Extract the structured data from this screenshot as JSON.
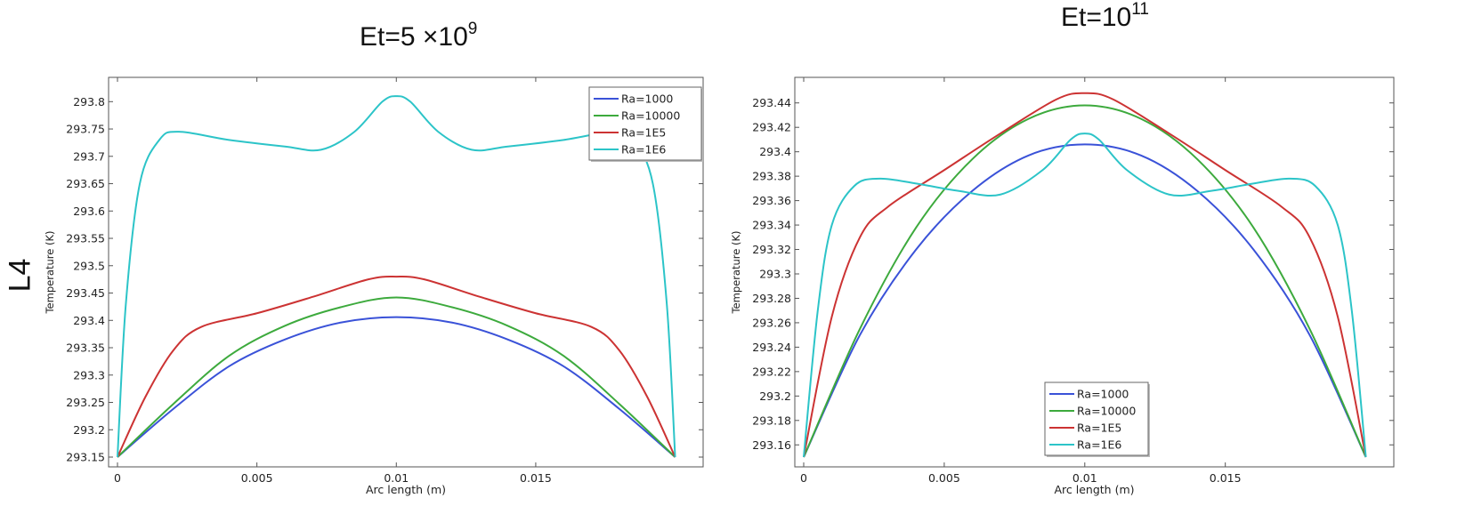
{
  "row_label": "L4",
  "charts": [
    {
      "title": {
        "main": "Et=5  ×10",
        "sup": "9"
      }
    },
    {
      "title": {
        "main": "Et=10",
        "sup": "11"
      }
    }
  ],
  "chart_data": [
    {
      "type": "line",
      "title": "Et=5  ×10^9",
      "xlabel": "Arc length (m)",
      "ylabel": "Temperature (K)",
      "xlim": [
        0,
        0.02
      ],
      "ylim": [
        293.15,
        293.82
      ],
      "xticks": [
        "0",
        "0.005",
        "0.01",
        "0.015"
      ],
      "yticks": [
        "293.15",
        "293.2",
        "293.25",
        "293.3",
        "293.35",
        "293.4",
        "293.45",
        "293.5",
        "293.55",
        "293.6",
        "293.65",
        "293.7",
        "293.75",
        "293.8"
      ],
      "legend_position": "top-right",
      "series": [
        {
          "name": "Ra=1000",
          "color": "#3a52d8",
          "x": [
            0,
            0.002,
            0.004,
            0.006,
            0.008,
            0.01,
            0.012,
            0.014,
            0.016,
            0.018,
            0.02
          ],
          "y": [
            293.15,
            293.238,
            293.316,
            293.365,
            293.396,
            293.406,
            293.396,
            293.365,
            293.316,
            293.238,
            293.15
          ]
        },
        {
          "name": "Ra=10000",
          "color": "#3daa3d",
          "x": [
            0,
            0.002,
            0.004,
            0.006,
            0.008,
            0.01,
            0.012,
            0.014,
            0.016,
            0.018,
            0.02
          ],
          "y": [
            293.15,
            293.247,
            293.335,
            293.39,
            293.424,
            293.442,
            293.424,
            293.39,
            293.335,
            293.247,
            293.15
          ]
        },
        {
          "name": "Ra=1E5",
          "color": "#cc3333",
          "x": [
            0,
            0.001,
            0.002,
            0.003,
            0.005,
            0.007,
            0.009,
            0.01,
            0.011,
            0.013,
            0.015,
            0.017,
            0.018,
            0.019,
            0.02
          ],
          "y": [
            293.15,
            293.26,
            293.345,
            293.388,
            293.413,
            293.443,
            293.475,
            293.48,
            293.475,
            293.443,
            293.413,
            293.388,
            293.345,
            293.26,
            293.15
          ]
        },
        {
          "name": "Ra=1E6",
          "color": "#2cc4c8",
          "x": [
            0,
            0.0003,
            0.0008,
            0.0015,
            0.0022,
            0.004,
            0.006,
            0.0073,
            0.0085,
            0.0095,
            0.01,
            0.0105,
            0.0115,
            0.0127,
            0.014,
            0.016,
            0.0178,
            0.0185,
            0.0192,
            0.0197,
            0.02
          ],
          "y": [
            293.15,
            293.43,
            293.65,
            293.73,
            293.745,
            293.73,
            293.718,
            293.712,
            293.745,
            293.8,
            293.81,
            293.8,
            293.745,
            293.712,
            293.718,
            293.73,
            293.745,
            293.73,
            293.65,
            293.43,
            293.15
          ]
        }
      ]
    },
    {
      "type": "line",
      "title": "Et=10^11",
      "xlabel": "Arc length (m)",
      "ylabel": "Temperature (K)",
      "xlim": [
        0,
        0.02
      ],
      "ylim": [
        293.15,
        293.45
      ],
      "xticks": [
        "0",
        "0.005",
        "0.01",
        "0.015"
      ],
      "yticks": [
        "293.16",
        "293.18",
        "293.2",
        "293.22",
        "293.24",
        "293.26",
        "293.28",
        "293.3",
        "293.32",
        "293.34",
        "293.36",
        "293.38",
        "293.4",
        "293.42",
        "293.44"
      ],
      "legend_position": "bottom-center",
      "series": [
        {
          "name": "Ra=1000",
          "color": "#3a52d8",
          "x": [
            0,
            0.002,
            0.004,
            0.006,
            0.008,
            0.01,
            0.012,
            0.014,
            0.016,
            0.018,
            0.02
          ],
          "y": [
            293.15,
            293.25,
            293.32,
            293.368,
            293.397,
            293.406,
            293.397,
            293.368,
            293.32,
            293.25,
            293.15
          ]
        },
        {
          "name": "Ra=10000",
          "color": "#3daa3d",
          "x": [
            0,
            0.002,
            0.004,
            0.006,
            0.008,
            0.01,
            0.012,
            0.014,
            0.016,
            0.018,
            0.02
          ],
          "y": [
            293.15,
            293.255,
            293.338,
            293.394,
            293.427,
            293.438,
            293.427,
            293.394,
            293.338,
            293.255,
            293.15
          ]
        },
        {
          "name": "Ra=1E5",
          "color": "#cc3333",
          "x": [
            0,
            0.001,
            0.002,
            0.003,
            0.005,
            0.007,
            0.009,
            0.01,
            0.011,
            0.013,
            0.015,
            0.017,
            0.018,
            0.019,
            0.02
          ],
          "y": [
            293.15,
            293.265,
            293.33,
            293.355,
            293.385,
            293.415,
            293.443,
            293.448,
            293.443,
            293.415,
            293.385,
            293.355,
            293.33,
            293.265,
            293.15
          ]
        },
        {
          "name": "Ra=1E6",
          "color": "#2cc4c8",
          "x": [
            0,
            0.0005,
            0.001,
            0.0018,
            0.0027,
            0.004,
            0.0055,
            0.007,
            0.0085,
            0.0095,
            0.01,
            0.0105,
            0.0115,
            0.013,
            0.0145,
            0.016,
            0.0173,
            0.0182,
            0.019,
            0.0195,
            0.02
          ],
          "y": [
            293.15,
            293.27,
            293.34,
            293.372,
            293.378,
            293.374,
            293.368,
            293.365,
            293.385,
            293.41,
            293.415,
            293.41,
            293.385,
            293.365,
            293.368,
            293.374,
            293.378,
            293.372,
            293.34,
            293.27,
            293.15
          ]
        }
      ]
    }
  ]
}
